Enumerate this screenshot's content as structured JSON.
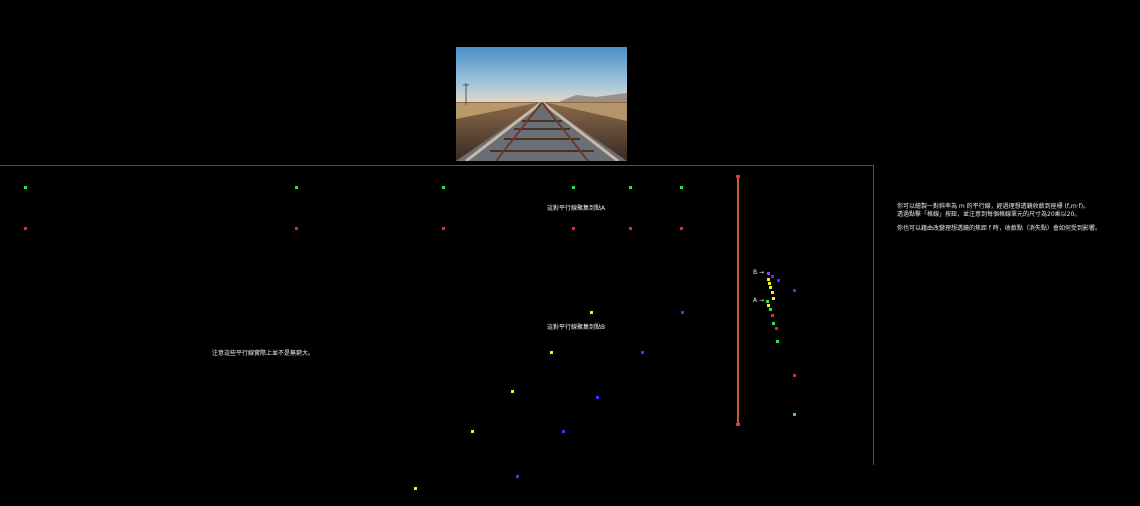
{
  "annotations": {
    "toward_a": "這對平行線聚集到點A",
    "toward_b": "這對平行線聚集到點B",
    "not_infinite": "注意這些平行線實際上並不是無窮大。",
    "point_b": "B →",
    "point_a": "A →"
  },
  "info": {
    "line1": "你可以繪製一對斜率為 m 的平行線，經過理想透鏡收斂到座標 (f,m·f)。",
    "line2": "透過點擊「格線」按鈕，並注意到每個格線單元的尺寸為20乘以20。",
    "line3": "你也可以藉由改變理想透鏡的焦距 f 時，收斂點（消失點）會如何受到影響。"
  },
  "colors": {
    "canvas_border": "#8a3a1a",
    "green": "#2fe04a",
    "red": "#e0282c",
    "yellow": "#f2f02a",
    "blue": "#3a3aff",
    "screen_line": "#c85a3a"
  },
  "photo": {
    "subject": "railway-tracks-photo"
  }
}
